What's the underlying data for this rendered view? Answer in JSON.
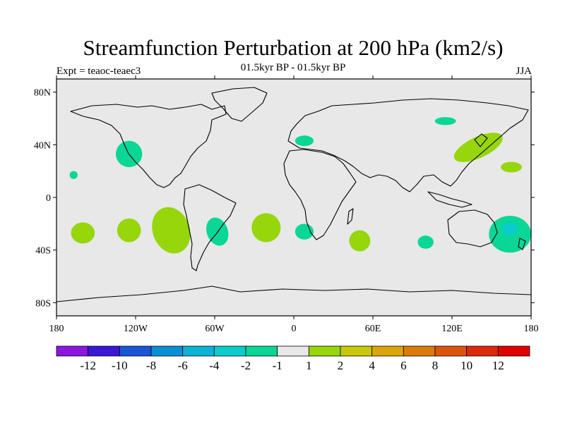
{
  "header": {
    "title": "Streamfunction Perturbation at 200 hPa (km2/s)",
    "subtitle": "01.5kyr BP - 01.5kyr BP",
    "left_label": "Expt = teaoc-teaec3",
    "right_label": "JJA"
  },
  "chart_data": {
    "type": "heatmap",
    "projection": "cylindrical-equidistant",
    "variable": "Streamfunction perturbation",
    "units": "km2/s",
    "level": "200 hPa",
    "season": "JJA",
    "lon_range": [
      -180,
      180
    ],
    "lat_range": [
      -90,
      90
    ],
    "lat_ticks": [
      {
        "value": 80,
        "label": "80N"
      },
      {
        "value": 40,
        "label": "40N"
      },
      {
        "value": 0,
        "label": "0"
      },
      {
        "value": -40,
        "label": "40S"
      },
      {
        "value": -80,
        "label": "80S"
      }
    ],
    "lon_ticks": [
      {
        "value": -180,
        "label": "180"
      },
      {
        "value": -120,
        "label": "120W"
      },
      {
        "value": -60,
        "label": "60W"
      },
      {
        "value": 0,
        "label": "0"
      },
      {
        "value": 60,
        "label": "60E"
      },
      {
        "value": 120,
        "label": "120E"
      },
      {
        "value": 180,
        "label": "180"
      }
    ],
    "background_color": "#e8e8e8",
    "colorbar": {
      "boundaries": [
        "-12",
        "-10",
        "-8",
        "-6",
        "-4",
        "-2",
        "-1",
        "1",
        "2",
        "4",
        "6",
        "8",
        "10",
        "12"
      ],
      "colors": [
        "#8a16e0",
        "#3a16d6",
        "#1a55d8",
        "#0a8ed6",
        "#0ab4d6",
        "#0acccc",
        "#0ad696",
        "#e8e8e8",
        "#96d60a",
        "#c8c80a",
        "#dca60a",
        "#dc7a0a",
        "#dc550a",
        "#dc2a0a",
        "#e00000"
      ]
    },
    "anomalies": [
      {
        "lon": -125,
        "lat": 33,
        "rlon": 10,
        "rlat": 10,
        "rot": -30,
        "color": "#0ad696"
      },
      {
        "lon": -167,
        "lat": 17,
        "rlon": 3,
        "rlat": 3,
        "rot": 0,
        "color": "#0ad696"
      },
      {
        "lon": -160,
        "lat": -27,
        "rlon": 9,
        "rlat": 8,
        "rot": 0,
        "color": "#96d60a"
      },
      {
        "lon": -125,
        "lat": -25,
        "rlon": 9,
        "rlat": 9,
        "rot": 0,
        "color": "#96d60a"
      },
      {
        "lon": -93,
        "lat": -25,
        "rlon": 14,
        "rlat": 18,
        "rot": -20,
        "color": "#96d60a"
      },
      {
        "lon": -58,
        "lat": -26,
        "rlon": 8,
        "rlat": 11,
        "rot": -20,
        "color": "#0ad696"
      },
      {
        "lon": -21,
        "lat": -23,
        "rlon": 11,
        "rlat": 11,
        "rot": 0,
        "color": "#96d60a"
      },
      {
        "lon": 8,
        "lat": 43,
        "rlon": 7,
        "rlat": 4,
        "rot": 0,
        "color": "#0ad696"
      },
      {
        "lon": 8,
        "lat": -26,
        "rlon": 7,
        "rlat": 6,
        "rot": 0,
        "color": "#0ad696"
      },
      {
        "lon": 50,
        "lat": -33,
        "rlon": 8,
        "rlat": 8,
        "rot": 0,
        "color": "#96d60a"
      },
      {
        "lon": 100,
        "lat": -34,
        "rlon": 6,
        "rlat": 5,
        "rot": 0,
        "color": "#0ad696"
      },
      {
        "lon": 115,
        "lat": 58,
        "rlon": 8,
        "rlat": 3,
        "rot": 0,
        "color": "#0ad696"
      },
      {
        "lon": 140,
        "lat": 38,
        "rlon": 20,
        "rlat": 8,
        "rot": -25,
        "color": "#96d60a"
      },
      {
        "lon": 165,
        "lat": 23,
        "rlon": 8,
        "rlat": 4,
        "rot": 0,
        "color": "#96d60a"
      },
      {
        "lon": 164,
        "lat": -28,
        "rlon": 16,
        "rlat": 14,
        "rot": 0,
        "color": "#0ad696"
      },
      {
        "lon": 164,
        "lat": -24,
        "rlon": 6,
        "rlat": 5,
        "rot": 0,
        "color": "#0acccc"
      }
    ]
  }
}
